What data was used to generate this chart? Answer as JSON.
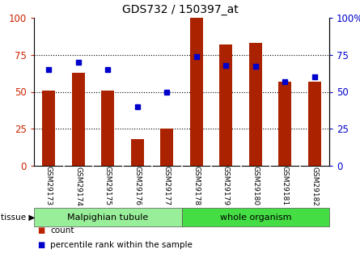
{
  "title": "GDS732 / 150397_at",
  "samples": [
    "GSM29173",
    "GSM29174",
    "GSM29175",
    "GSM29176",
    "GSM29177",
    "GSM29178",
    "GSM29179",
    "GSM29180",
    "GSM29181",
    "GSM29182"
  ],
  "bar_values": [
    51,
    63,
    51,
    18,
    25,
    100,
    82,
    83,
    57,
    57
  ],
  "dot_values": [
    65,
    70,
    65,
    40,
    50,
    74,
    68,
    67,
    57,
    60
  ],
  "bar_color": "#AA2200",
  "dot_color": "#0000CC",
  "ylim": [
    0,
    100
  ],
  "yticks": [
    0,
    25,
    50,
    75,
    100
  ],
  "ytick_labels_left": [
    "0",
    "25",
    "50",
    "75",
    "100"
  ],
  "ytick_labels_right": [
    "0",
    "25",
    "50",
    "75",
    "100%"
  ],
  "grid_values": [
    25,
    50,
    75
  ],
  "tissue_groups": [
    {
      "label": "Malpighian tubule",
      "start": 0,
      "end": 5,
      "color": "#99EE99"
    },
    {
      "label": "whole organism",
      "start": 5,
      "end": 10,
      "color": "#44DD44"
    }
  ],
  "tissue_label": "tissue",
  "legend_items": [
    {
      "label": "count",
      "color": "#BB2200"
    },
    {
      "label": "percentile rank within the sample",
      "color": "#0000CC"
    }
  ],
  "bar_width": 0.45,
  "tick_color_left": "#CC2200",
  "tick_color_right": "#0000CC",
  "background_color": "#FFFFFF",
  "plot_bg_color": "#FFFFFF",
  "xticklabels_bg": "#CCCCCC"
}
